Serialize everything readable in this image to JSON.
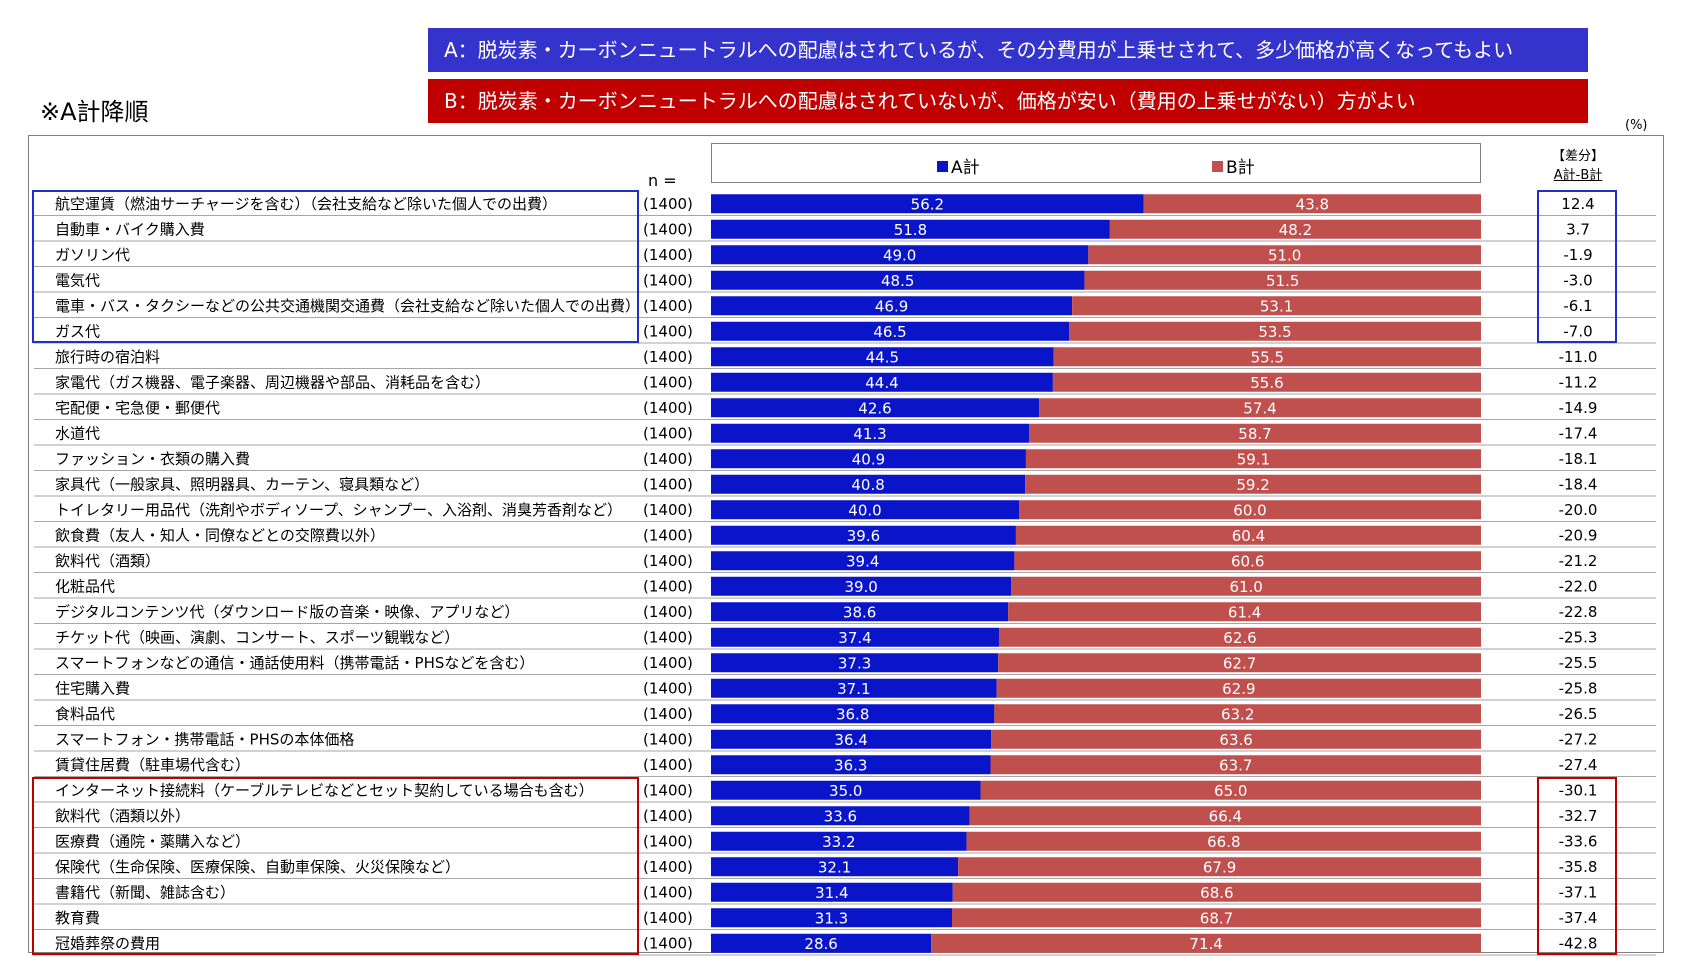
{
  "header": {
    "banner_a": "A：脱炭素・カーボンニュートラルへの配慮はされているが、その分費用が上乗せされて、多少価格が高くなってもよい",
    "banner_b": "B：脱炭素・カーボンニュートラルへの配慮はされていないが、価格が安い（費用の上乗せがない）方がよい",
    "note": "※A計降順",
    "unit": "(%)"
  },
  "colors": {
    "banner_a": "#3434cc",
    "banner_b": "#c00000",
    "series_a": "#0a14c8",
    "series_b": "#c0504d",
    "highlight_top": "#1f2ecc",
    "highlight_bottom": "#c00000"
  },
  "chart_data": {
    "type": "bar",
    "orientation": "horizontal",
    "stacked": "100%",
    "xlim": [
      0,
      100
    ],
    "n_label": "n =",
    "diff_header": [
      "【差分】",
      "A計-B計"
    ],
    "legend_position": "top",
    "categories": [
      "航空運賃（燃油サーチャージを含む）（会社支給など除いた個人での出費）",
      "自動車・バイク購入費",
      "ガソリン代",
      "電気代",
      "電車・バス・タクシーなどの公共交通機関交通費（会社支給など除いた個人での出費）",
      "ガス代",
      "旅行時の宿泊料",
      "家電代（ガス機器、電子楽器、周辺機器や部品、消耗品を含む）",
      "宅配便・宅急便・郵便代",
      "水道代",
      "ファッション・衣類の購入費",
      "家具代（一般家具、照明器具、カーテン、寝具類など）",
      "トイレタリー用品代（洗剤やボディソープ、シャンプー、入浴剤、消臭芳香剤など）",
      "飲食費（友人・知人・同僚などとの交際費以外）",
      "飲料代（酒類）",
      "化粧品代",
      "デジタルコンテンツ代（ダウンロード版の音楽・映像、アプリなど）",
      "チケット代（映画、演劇、コンサート、スポーツ観戦など）",
      "スマートフォンなどの通信・通話使用料（携帯電話・PHSなどを含む）",
      "住宅購入費",
      "食料品代",
      "スマートフォン・携帯電話・PHSの本体価格",
      "賃貸住居費（駐車場代含む）",
      "インターネット接続料（ケーブルテレビなどとセット契約している場合も含む）",
      "飲料代（酒類以外）",
      "医療費（通院・薬購入など）",
      "保険代（生命保険、医療保険、自動車保険、火災保険など）",
      "書籍代（新聞、雑誌含む）",
      "教育費",
      "冠婚葬祭の費用"
    ],
    "n": [
      "(1400)",
      "(1400)",
      "(1400)",
      "(1400)",
      "(1400)",
      "(1400)",
      "(1400)",
      "(1400)",
      "(1400)",
      "(1400)",
      "(1400)",
      "(1400)",
      "(1400)",
      "(1400)",
      "(1400)",
      "(1400)",
      "(1400)",
      "(1400)",
      "(1400)",
      "(1400)",
      "(1400)",
      "(1400)",
      "(1400)",
      "(1400)",
      "(1400)",
      "(1400)",
      "(1400)",
      "(1400)",
      "(1400)",
      "(1400)"
    ],
    "series": [
      {
        "name": "A計",
        "values": [
          56.2,
          51.8,
          49.0,
          48.5,
          46.9,
          46.5,
          44.5,
          44.4,
          42.6,
          41.3,
          40.9,
          40.8,
          40.0,
          39.6,
          39.4,
          39.0,
          38.6,
          37.4,
          37.3,
          37.1,
          36.8,
          36.4,
          36.3,
          35.0,
          33.6,
          33.2,
          32.1,
          31.4,
          31.3,
          28.6
        ]
      },
      {
        "name": "B計",
        "values": [
          43.8,
          48.2,
          51.0,
          51.5,
          53.1,
          53.5,
          55.5,
          55.6,
          57.4,
          58.7,
          59.1,
          59.2,
          60.0,
          60.4,
          60.6,
          61.0,
          61.4,
          62.6,
          62.7,
          62.9,
          63.2,
          63.6,
          63.7,
          65.0,
          66.4,
          66.8,
          67.9,
          68.6,
          68.7,
          71.4
        ]
      }
    ],
    "diff": [
      "12.4",
      "3.7",
      "-1.9",
      "-3.0",
      "-6.1",
      "-7.0",
      "-11.0",
      "-11.2",
      "-14.9",
      "-17.4",
      "-18.1",
      "-18.4",
      "-20.0",
      "-20.9",
      "-21.2",
      "-22.0",
      "-22.8",
      "-25.3",
      "-25.5",
      "-25.8",
      "-26.5",
      "-27.2",
      "-27.4",
      "-30.1",
      "-32.7",
      "-33.6",
      "-35.8",
      "-37.1",
      "-37.4",
      "-42.8"
    ],
    "highlight_groups": [
      {
        "rows": [
          0,
          5
        ],
        "color": "#1f2ecc"
      },
      {
        "rows": [
          23,
          29
        ],
        "color": "#c00000"
      }
    ]
  }
}
